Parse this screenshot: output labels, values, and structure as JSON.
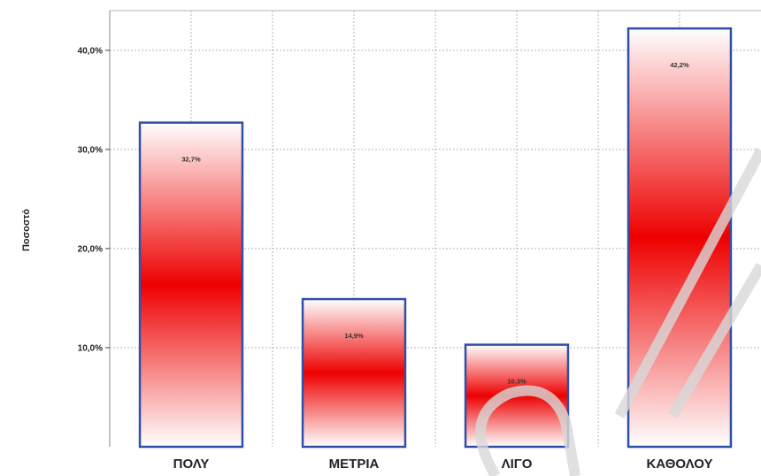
{
  "chart_data": {
    "type": "bar",
    "categories": [
      "ΠΟΛΥ",
      "ΜΕΤΡΙΑ",
      "ΛΙΓΟ",
      "ΚΑΘΟΛΟΥ"
    ],
    "values": [
      32.7,
      14.9,
      10.3,
      42.2
    ],
    "data_labels": [
      "32,7%",
      "14,9%",
      "10,3%",
      "42,2%"
    ],
    "ylabel": "Ποσοστό",
    "xlabel": "",
    "ylim": [
      0,
      44
    ],
    "yticks": [
      10,
      20,
      30,
      40
    ],
    "ytick_labels": [
      "10,0%",
      "20,0%",
      "30,0%",
      "40,0%"
    ],
    "grid": "on",
    "legend": "none",
    "colors": {
      "bar_center": "#ee0000",
      "bar_edge": "#ffffff",
      "bar_border": "#2f4fa8",
      "grid": "#b4b4b4"
    }
  }
}
